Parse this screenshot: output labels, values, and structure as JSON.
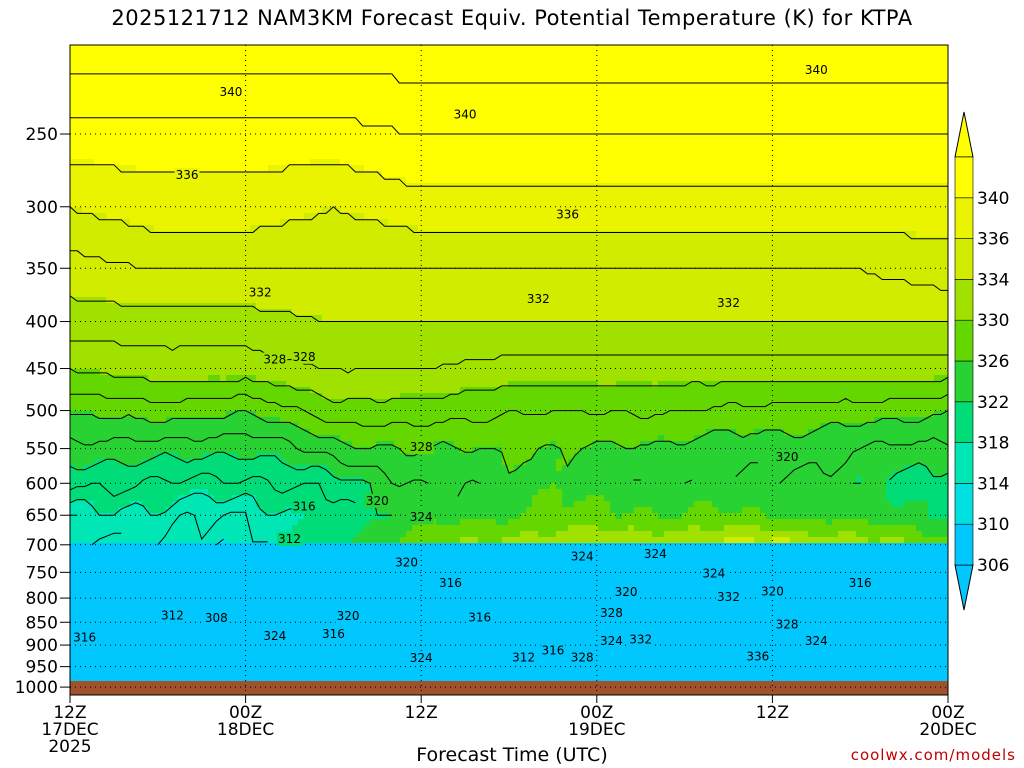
{
  "title": "2025121712 NAM3KM Forecast Equiv. Potential Temperature (K) for KTPA",
  "credit": "coolwx.com/models",
  "chart_data": {
    "type": "heatmap",
    "title": "2025121712 NAM3KM Forecast Equiv. Potential Temperature (K) for KTPA",
    "xlabel": "Forecast Time (UTC)",
    "ylabel": "",
    "x_ticks": [
      {
        "hour": 0,
        "line1": "12Z",
        "line2": "17DEC",
        "line3": "2025"
      },
      {
        "hour": 12,
        "line1": "00Z",
        "line2": "18DEC",
        "line3": ""
      },
      {
        "hour": 24,
        "line1": "12Z",
        "line2": "",
        "line3": ""
      },
      {
        "hour": 36,
        "line1": "00Z",
        "line2": "19DEC",
        "line3": ""
      },
      {
        "hour": 48,
        "line1": "12Z",
        "line2": "",
        "line3": ""
      },
      {
        "hour": 60,
        "line1": "00Z",
        "line2": "20DEC",
        "line3": ""
      }
    ],
    "xlim_hours": [
      0,
      60
    ],
    "y_ticks": [
      "250",
      "300",
      "350",
      "400",
      "450",
      "500",
      "550",
      "600",
      "650",
      "700",
      "750",
      "800",
      "850",
      "900",
      "950",
      "1000"
    ],
    "y_tick_values": [
      250,
      300,
      350,
      400,
      450,
      500,
      550,
      600,
      650,
      700,
      750,
      800,
      850,
      900,
      950,
      1000
    ],
    "ylim": [
      200,
      1020
    ],
    "y_scale": "log",
    "grid": "dotted",
    "colorbar": {
      "labels": [
        "306",
        "310",
        "314",
        "318",
        "322",
        "326",
        "330",
        "334",
        "336",
        "340"
      ],
      "values": [
        306,
        310,
        314,
        318,
        322,
        326,
        330,
        334,
        336,
        340
      ],
      "colors": [
        "#00c8ff",
        "#00e0e0",
        "#00e6b4",
        "#00dc78",
        "#28d232",
        "#64d700",
        "#a0e100",
        "#d2ec00",
        "#eaf400",
        "#ffff00"
      ]
    },
    "profile_levels": [
      200,
      250,
      300,
      350,
      400,
      450,
      500,
      550,
      600,
      650,
      700,
      750,
      800,
      850,
      900,
      950,
      1000
    ],
    "profile_hours": [
      0,
      6,
      12,
      18,
      24,
      30,
      36,
      42,
      48,
      54,
      60
    ],
    "theta_e_profiles": [
      [
        341,
        337,
        334,
        331,
        329,
        326,
        322,
        319,
        316,
        313,
        312
      ],
      [
        341,
        337,
        335,
        332,
        329,
        327,
        323,
        319,
        316,
        313,
        312
      ],
      [
        341,
        337,
        335,
        332,
        329,
        327,
        322,
        318,
        315,
        312,
        311
      ],
      [
        341,
        337,
        334,
        332,
        330,
        328,
        325,
        321,
        317,
        315,
        316
      ],
      [
        341,
        338,
        335,
        332,
        330,
        328,
        325,
        322,
        320,
        320,
        324
      ],
      [
        341,
        338,
        335,
        332,
        330,
        327,
        324,
        322,
        321,
        322,
        328
      ],
      [
        341,
        338,
        335,
        332,
        330,
        327,
        324,
        322,
        321,
        323,
        330
      ],
      [
        341,
        338,
        335,
        332,
        330,
        327,
        324,
        321,
        320,
        322,
        330
      ],
      [
        341,
        338,
        335,
        332,
        330,
        327,
        323,
        321,
        320,
        322,
        332
      ],
      [
        341,
        338,
        335,
        332,
        330,
        327,
        323,
        320,
        318,
        320,
        328
      ],
      [
        341,
        338,
        335,
        333,
        330,
        327,
        322,
        319,
        317,
        318,
        324
      ]
    ],
    "contour_labels": [
      {
        "text": "340",
        "hour": 11,
        "p": 225
      },
      {
        "text": "340",
        "hour": 27,
        "p": 238
      },
      {
        "text": "340",
        "hour": 51,
        "p": 213
      },
      {
        "text": "336",
        "hour": 8,
        "p": 277
      },
      {
        "text": "336",
        "hour": 34,
        "p": 306
      },
      {
        "text": "332",
        "hour": 13,
        "p": 372
      },
      {
        "text": "332",
        "hour": 32,
        "p": 378
      },
      {
        "text": "332",
        "hour": 45,
        "p": 382
      },
      {
        "text": "328",
        "hour": 14,
        "p": 440
      },
      {
        "text": "328",
        "hour": 16,
        "p": 437
      },
      {
        "text": "328",
        "hour": 24,
        "p": 548
      },
      {
        "text": "320",
        "hour": 21,
        "p": 627
      },
      {
        "text": "316",
        "hour": 16,
        "p": 636
      },
      {
        "text": "324",
        "hour": 24,
        "p": 653
      },
      {
        "text": "312",
        "hour": 15,
        "p": 690
      },
      {
        "text": "320",
        "hour": 23,
        "p": 732
      },
      {
        "text": "316",
        "hour": 26,
        "p": 770
      },
      {
        "text": "324",
        "hour": 35,
        "p": 721
      },
      {
        "text": "324",
        "hour": 40,
        "p": 716
      },
      {
        "text": "324",
        "hour": 44,
        "p": 752
      },
      {
        "text": "320",
        "hour": 38,
        "p": 788
      },
      {
        "text": "332",
        "hour": 45,
        "p": 798
      },
      {
        "text": "320",
        "hour": 48,
        "p": 787
      },
      {
        "text": "316",
        "hour": 54,
        "p": 770
      },
      {
        "text": "320",
        "hour": 49,
        "p": 562
      },
      {
        "text": "312",
        "hour": 7,
        "p": 836
      },
      {
        "text": "308",
        "hour": 10,
        "p": 841
      },
      {
        "text": "316",
        "hour": 1,
        "p": 883
      },
      {
        "text": "324",
        "hour": 14,
        "p": 880
      },
      {
        "text": "316",
        "hour": 18,
        "p": 875
      },
      {
        "text": "320",
        "hour": 19,
        "p": 837
      },
      {
        "text": "316",
        "hour": 28,
        "p": 840
      },
      {
        "text": "328",
        "hour": 37,
        "p": 830
      },
      {
        "text": "324",
        "hour": 24,
        "p": 930
      },
      {
        "text": "312",
        "hour": 31,
        "p": 928
      },
      {
        "text": "316",
        "hour": 33,
        "p": 912
      },
      {
        "text": "328",
        "hour": 35,
        "p": 928
      },
      {
        "text": "324",
        "hour": 37,
        "p": 891
      },
      {
        "text": "332",
        "hour": 39,
        "p": 887
      },
      {
        "text": "328",
        "hour": 49,
        "p": 855
      },
      {
        "text": "336",
        "hour": 47,
        "p": 926
      },
      {
        "text": "324",
        "hour": 51,
        "p": 891
      }
    ]
  }
}
